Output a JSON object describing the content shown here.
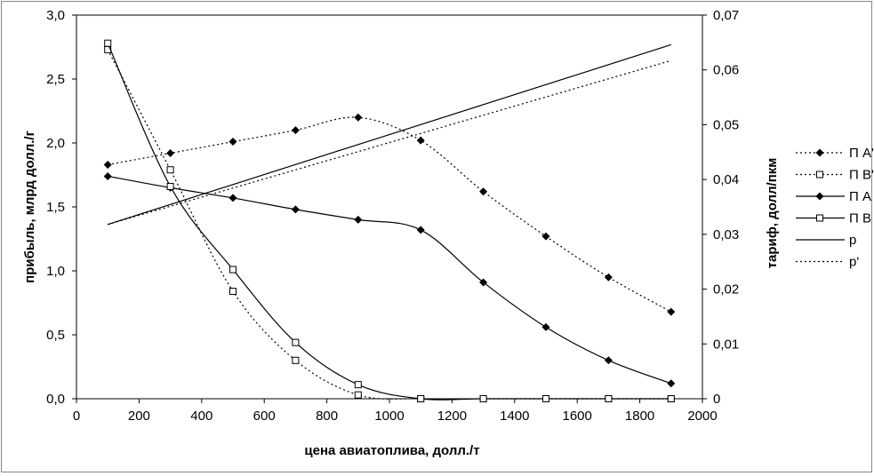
{
  "chart_data": {
    "type": "line",
    "xlabel": "цена авиатоплива, долл./т",
    "ylabel": "прибыль, млрд долл./г",
    "y2label": "тариф, долл/пкм",
    "xlim": [
      0,
      2000
    ],
    "ylim": [
      0,
      3.0
    ],
    "y2lim": [
      0,
      0.07
    ],
    "x_ticks": [
      "0",
      "200",
      "400",
      "600",
      "800",
      "1000",
      "1200",
      "1400",
      "1600",
      "1800",
      "2000"
    ],
    "y_ticks": [
      "0,0",
      "0,5",
      "1,0",
      "1,5",
      "2,0",
      "2,5",
      "3,0"
    ],
    "y2_ticks": [
      "0",
      "0,01",
      "0,02",
      "0,03",
      "0,04",
      "0,05",
      "0,06",
      "0,07"
    ],
    "grid": false,
    "legend_position": "right",
    "series": [
      {
        "name": "П А'",
        "axis": "left",
        "style": "dotted",
        "marker": "diamond",
        "x": [
          100,
          300,
          500,
          700,
          900,
          1100,
          1300,
          1500,
          1700,
          1900
        ],
        "y": [
          1.83,
          1.92,
          2.01,
          2.1,
          2.2,
          2.02,
          1.62,
          1.27,
          0.95,
          0.68
        ]
      },
      {
        "name": "П В'",
        "axis": "left",
        "style": "dotted",
        "marker": "square",
        "x": [
          100,
          300,
          500,
          700,
          900,
          1100,
          1300,
          1500,
          1700,
          1900
        ],
        "y": [
          2.73,
          1.79,
          0.84,
          0.3,
          0.03,
          0.0,
          0.0,
          0.0,
          0.0,
          0.0
        ]
      },
      {
        "name": "П А",
        "axis": "left",
        "style": "solid",
        "marker": "diamond",
        "x": [
          100,
          300,
          500,
          700,
          900,
          1100,
          1300,
          1500,
          1700,
          1900
        ],
        "y": [
          1.74,
          1.65,
          1.57,
          1.48,
          1.4,
          1.32,
          0.91,
          0.56,
          0.3,
          0.12
        ]
      },
      {
        "name": "П В",
        "axis": "left",
        "style": "solid",
        "marker": "square",
        "x": [
          100,
          300,
          500,
          700,
          900,
          1100,
          1300,
          1500,
          1700,
          1900
        ],
        "y": [
          2.78,
          1.66,
          1.01,
          0.44,
          0.11,
          0.0,
          0.0,
          0.0,
          0.0,
          0.0
        ]
      },
      {
        "name": "p",
        "axis": "right",
        "style": "solid",
        "marker": "none",
        "x": [
          100,
          1900
        ],
        "y": [
          0.0318,
          0.0646
        ]
      },
      {
        "name": "p'",
        "axis": "right",
        "style": "dotted",
        "marker": "none",
        "x": [
          100,
          1900
        ],
        "y": [
          0.0318,
          0.0617
        ]
      }
    ]
  }
}
